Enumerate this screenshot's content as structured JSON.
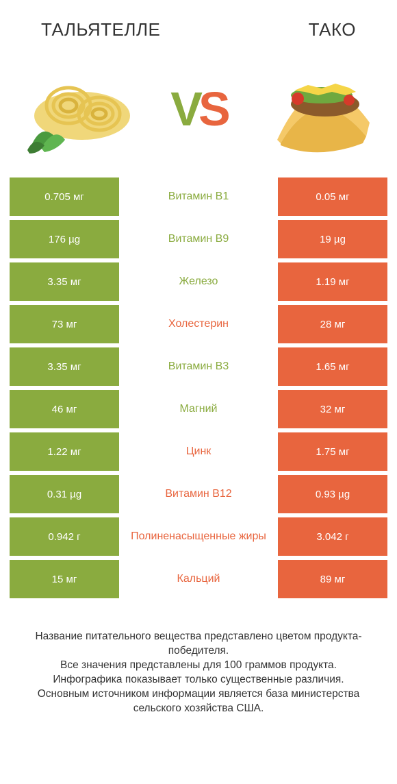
{
  "colors": {
    "left": "#8aab3f",
    "right": "#e8653e",
    "white": "#ffffff",
    "text": "#333333"
  },
  "header": {
    "left_title": "ТАЛЬЯТЕЛЛЕ",
    "right_title": "ТАКО"
  },
  "vs": {
    "v": "V",
    "s": "S"
  },
  "rows": [
    {
      "left": "0.705 мг",
      "label": "Витамин B1",
      "right": "0.05 мг",
      "winner": "left"
    },
    {
      "left": "176 µg",
      "label": "Витамин B9",
      "right": "19 µg",
      "winner": "left"
    },
    {
      "left": "3.35 мг",
      "label": "Железо",
      "right": "1.19 мг",
      "winner": "left"
    },
    {
      "left": "73 мг",
      "label": "Холестерин",
      "right": "28 мг",
      "winner": "right"
    },
    {
      "left": "3.35 мг",
      "label": "Витамин B3",
      "right": "1.65 мг",
      "winner": "left"
    },
    {
      "left": "46 мг",
      "label": "Магний",
      "right": "32 мг",
      "winner": "left"
    },
    {
      "left": "1.22 мг",
      "label": "Цинк",
      "right": "1.75 мг",
      "winner": "right"
    },
    {
      "left": "0.31 µg",
      "label": "Витамин B12",
      "right": "0.93 µg",
      "winner": "right"
    },
    {
      "left": "0.942 г",
      "label": "Полиненасыщенные жиры",
      "right": "3.042 г",
      "winner": "right"
    },
    {
      "left": "15 мг",
      "label": "Кальций",
      "right": "89 мг",
      "winner": "right"
    }
  ],
  "footer": {
    "line1": "Название питательного вещества представлено цветом продукта-победителя.",
    "line2": "Все значения представлены для 100 граммов продукта.",
    "line3": "Инфографика показывает только существенные различия.",
    "line4": "Основным источником информации является база министерства сельского хозяйства США."
  }
}
